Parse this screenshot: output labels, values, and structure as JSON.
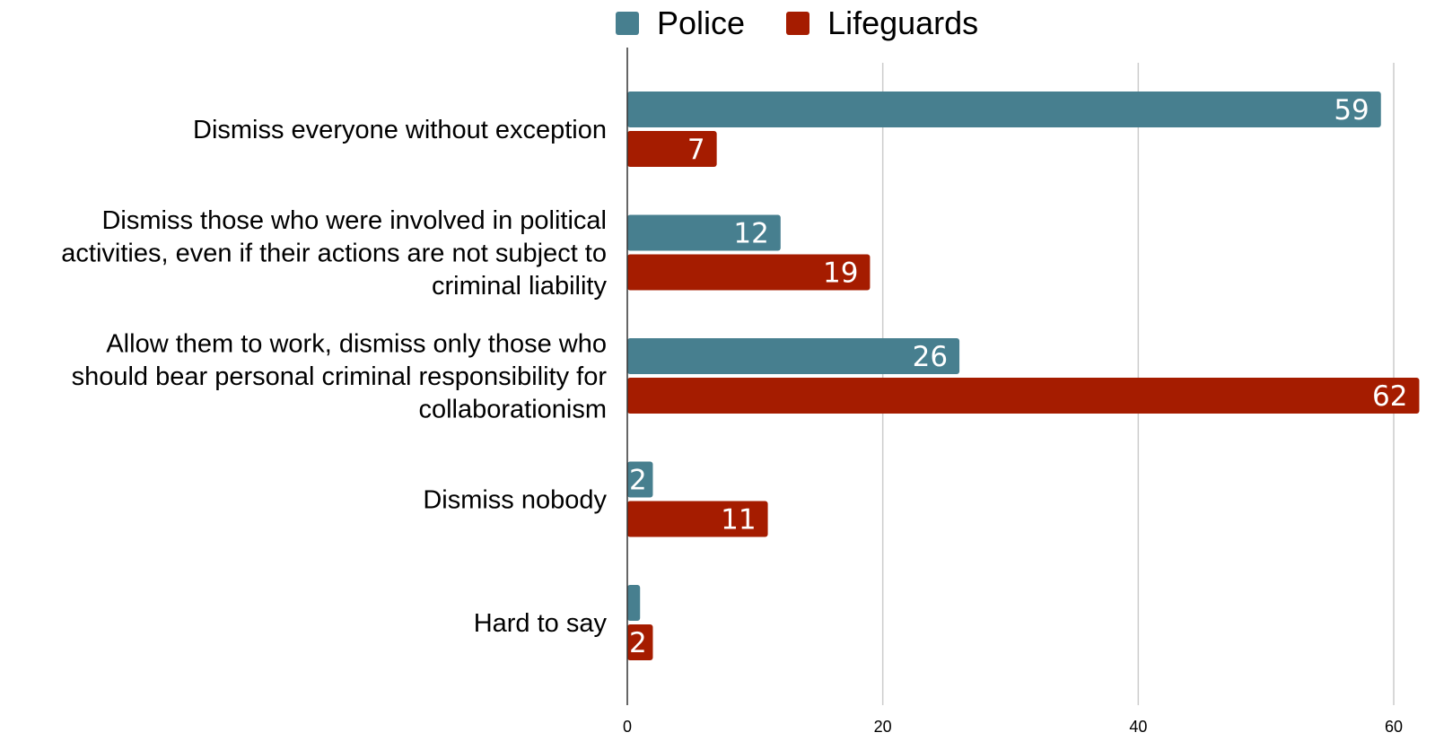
{
  "chart_data": {
    "type": "bar",
    "orientation": "horizontal",
    "categories": [
      [
        "Dismiss everyone without exception"
      ],
      [
        "Dismiss those who were involved in political",
        "activities, even if their actions are not subject to",
        "criminal liability"
      ],
      [
        "Allow them to work, dismiss only those who",
        "should bear personal criminal responsibility for",
        "collaborationism"
      ],
      [
        "Dismiss nobody"
      ],
      [
        "Hard to say"
      ]
    ],
    "series": [
      {
        "name": "Police",
        "color": "#477f8f",
        "values": [
          59,
          12,
          26,
          2,
          1
        ],
        "labels": [
          "59",
          "12",
          "26",
          "2",
          ""
        ]
      },
      {
        "name": "Lifeguards",
        "color": "#a51c00",
        "values": [
          7,
          19,
          62,
          11,
          2
        ],
        "labels": [
          "7",
          "19",
          "62",
          "11",
          "2"
        ]
      }
    ],
    "xlim": [
      0,
      60
    ],
    "xticks": [
      0,
      20,
      40,
      60
    ],
    "grid": true,
    "legend_position": "top-center",
    "title": "",
    "xlabel": "",
    "ylabel": ""
  },
  "legend": {
    "items": [
      {
        "label": "Police",
        "color": "#477f8f"
      },
      {
        "label": "Lifeguards",
        "color": "#a51c00"
      }
    ]
  }
}
